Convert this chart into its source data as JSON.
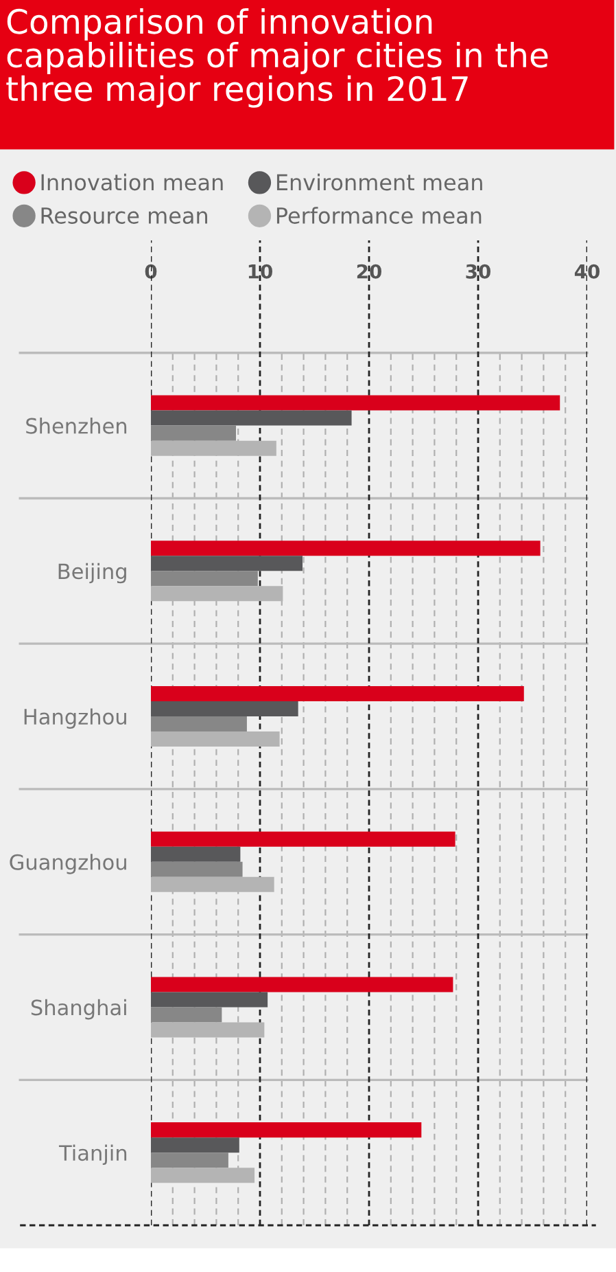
{
  "chart_data": {
    "type": "bar",
    "orientation": "horizontal",
    "title": "Comparison of innovation capabilities of major cities in the three major regions in 2017",
    "categories": [
      "Shenzhen",
      "Beijing",
      "Hangzhou",
      "Guangzhou",
      "Shanghai",
      "Tianjin"
    ],
    "series": [
      {
        "name": "Innovation mean",
        "color": "#d9001b",
        "values": [
          37.5,
          35.7,
          34.2,
          27.9,
          27.7,
          24.8
        ]
      },
      {
        "name": "Environment mean",
        "color": "#58585a",
        "values": [
          18.4,
          13.9,
          13.5,
          8.2,
          10.7,
          8.1
        ]
      },
      {
        "name": "Resource mean",
        "color": "#878787",
        "values": [
          7.8,
          9.8,
          8.8,
          8.4,
          6.5,
          7.1
        ]
      },
      {
        "name": "Performance mean",
        "color": "#b4b4b4",
        "values": [
          11.5,
          12.1,
          11.8,
          11.3,
          10.4,
          9.5
        ]
      }
    ],
    "xlim": [
      0,
      40
    ],
    "xticks": [
      0,
      {
        "value": 2,
        "label": null
      },
      {
        "value": 4,
        "label": null
      },
      {
        "value": 6,
        "label": null
      },
      {
        "value": 8,
        "label": null
      },
      10,
      {
        "value": 12,
        "label": null
      },
      {
        "value": 14,
        "label": null
      },
      {
        "value": 16,
        "label": null
      },
      {
        "value": 18,
        "label": null
      },
      20,
      {
        "value": 22,
        "label": null
      },
      {
        "value": 24,
        "label": null
      },
      {
        "value": 26,
        "label": null
      },
      {
        "value": 28,
        "label": null
      },
      30,
      {
        "value": 32,
        "label": null
      },
      {
        "value": 34,
        "label": null
      },
      {
        "value": 36,
        "label": null
      },
      {
        "value": 38,
        "label": null
      },
      40
    ],
    "grid": true,
    "legend": "top left",
    "marker": "circle"
  }
}
